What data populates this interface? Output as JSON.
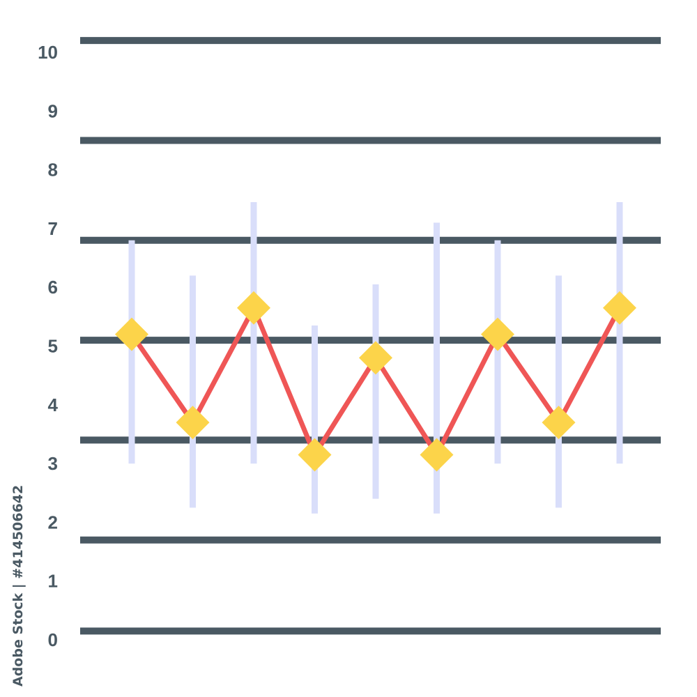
{
  "chart_data": {
    "type": "line",
    "title": "",
    "xlabel": "",
    "ylabel": "",
    "y_ticks": [
      "0",
      "1",
      "2",
      "3",
      "4",
      "5",
      "6",
      "7",
      "8",
      "9",
      "10"
    ],
    "ylim": [
      0,
      10
    ],
    "xlim": [
      0,
      10
    ],
    "grid": true,
    "control_lines": [
      0.15,
      1.7,
      3.4,
      5.1,
      6.8,
      8.5,
      10.2
    ],
    "series": [
      {
        "x": [
          1,
          2,
          3,
          4,
          5,
          6,
          7,
          8,
          9
        ],
        "values": [
          5.2,
          3.7,
          5.65,
          3.15,
          4.8,
          3.15,
          5.2,
          3.7,
          5.65
        ],
        "error_low": [
          3.0,
          2.25,
          3.0,
          2.15,
          2.4,
          2.15,
          3.0,
          2.25,
          3.0
        ],
        "error_high": [
          6.8,
          6.2,
          7.45,
          5.35,
          6.05,
          7.1,
          6.8,
          6.2,
          7.45
        ]
      }
    ],
    "colors": {
      "line": "#ef5656",
      "marker": "#fcd44a",
      "error_bar": "#d9defa",
      "control_line": "#4a5963",
      "text": "#4a5963"
    }
  },
  "watermark": "Adobe Stock | #414506642"
}
